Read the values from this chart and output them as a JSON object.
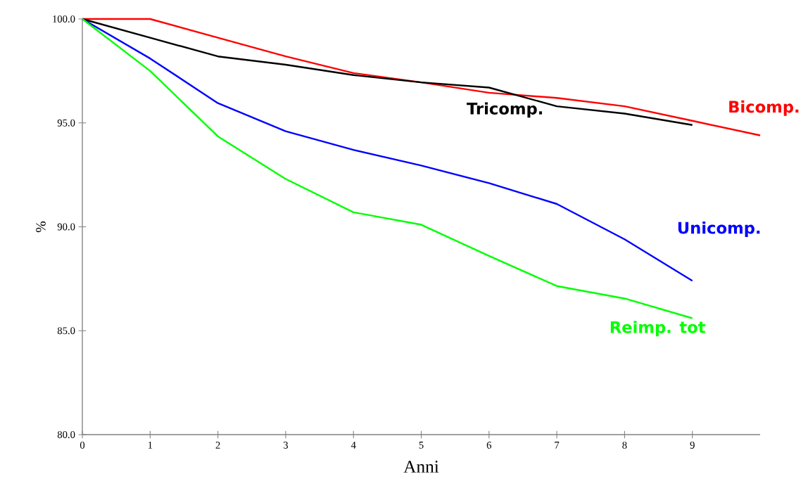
{
  "chart_data": {
    "type": "line",
    "xlabel": "Anni",
    "ylabel": "%",
    "x": [
      0,
      1,
      2,
      3,
      4,
      5,
      6,
      7,
      8,
      9
    ],
    "xlim": [
      0,
      10
    ],
    "xticks": [
      0,
      1,
      2,
      3,
      4,
      5,
      6,
      7,
      8,
      9
    ],
    "ylim": [
      80,
      100
    ],
    "yticks": [
      {
        "value": 80,
        "label": "80.0"
      },
      {
        "value": 85,
        "label": "85.0"
      },
      {
        "value": 90,
        "label": "90.0"
      },
      {
        "value": 95,
        "label": "95.0"
      },
      {
        "value": 100,
        "label": "100.0"
      }
    ],
    "grid": false,
    "marker": "none",
    "line_style": "solid",
    "series": [
      {
        "name": "Bicomp.",
        "color": "#ff0000",
        "x": [
          0,
          1,
          2,
          3,
          4,
          5,
          6,
          7,
          8,
          9,
          10
        ],
        "values": [
          100,
          100,
          99.1,
          98.2,
          97.4,
          96.95,
          96.45,
          96.2,
          95.8,
          95.1,
          94.4
        ]
      },
      {
        "name": "Tricomp.",
        "color": "#000000",
        "values": [
          100,
          99.1,
          98.2,
          97.8,
          97.3,
          96.95,
          96.7,
          95.8,
          95.45,
          94.9
        ]
      },
      {
        "name": "Unicomp.",
        "color": "#0000ff",
        "values": [
          100,
          98.1,
          95.95,
          94.6,
          93.7,
          92.95,
          92.1,
          91.1,
          89.4,
          87.4
        ]
      },
      {
        "name": "Reimp. tot",
        "color": "#00ff00",
        "values": [
          100,
          97.5,
          94.35,
          92.3,
          90.7,
          90.1,
          88.6,
          87.15,
          86.55,
          85.6
        ]
      }
    ]
  }
}
